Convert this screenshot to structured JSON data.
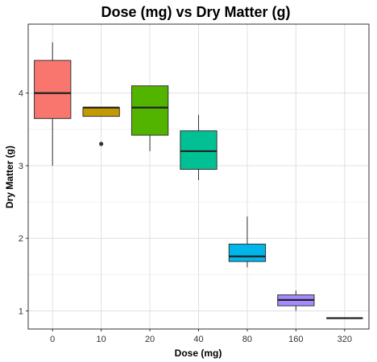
{
  "chart_data": {
    "type": "boxplot",
    "title": "Dose (mg) vs Dry Matter (g)",
    "xlabel": "Dose (mg)",
    "ylabel": "Dry Matter (g)",
    "categories": [
      "0",
      "10",
      "20",
      "40",
      "80",
      "160",
      "320"
    ],
    "y_ticks": [
      "1",
      "2",
      "3",
      "4"
    ],
    "ylim": [
      0.75,
      4.95
    ],
    "grid": true,
    "legend": "none",
    "boxes": [
      {
        "category": "0",
        "min": 3.0,
        "q1": 3.65,
        "median": 4.0,
        "q3": 4.45,
        "max": 4.7,
        "outliers": [],
        "color": "#F8766D"
      },
      {
        "category": "10",
        "min": 3.68,
        "q1": 3.68,
        "median": 3.8,
        "q3": 3.8,
        "max": 3.8,
        "outliers": [
          3.3
        ],
        "color": "#C49A00"
      },
      {
        "category": "20",
        "min": 3.2,
        "q1": 3.42,
        "median": 3.8,
        "q3": 4.1,
        "max": 4.1,
        "outliers": [],
        "color": "#53B400"
      },
      {
        "category": "40",
        "min": 2.8,
        "q1": 2.95,
        "median": 3.2,
        "q3": 3.48,
        "max": 3.7,
        "outliers": [],
        "color": "#00C094"
      },
      {
        "category": "80",
        "min": 1.6,
        "q1": 1.68,
        "median": 1.75,
        "q3": 1.92,
        "max": 2.3,
        "outliers": [],
        "color": "#00B6EB"
      },
      {
        "category": "160",
        "min": 1.0,
        "q1": 1.07,
        "median": 1.15,
        "q3": 1.22,
        "max": 1.28,
        "outliers": [],
        "color": "#A58AFF"
      },
      {
        "category": "320",
        "min": 0.9,
        "q1": 0.9,
        "median": 0.9,
        "q3": 0.9,
        "max": 0.9,
        "outliers": [],
        "color": "#FB61D7"
      }
    ]
  }
}
